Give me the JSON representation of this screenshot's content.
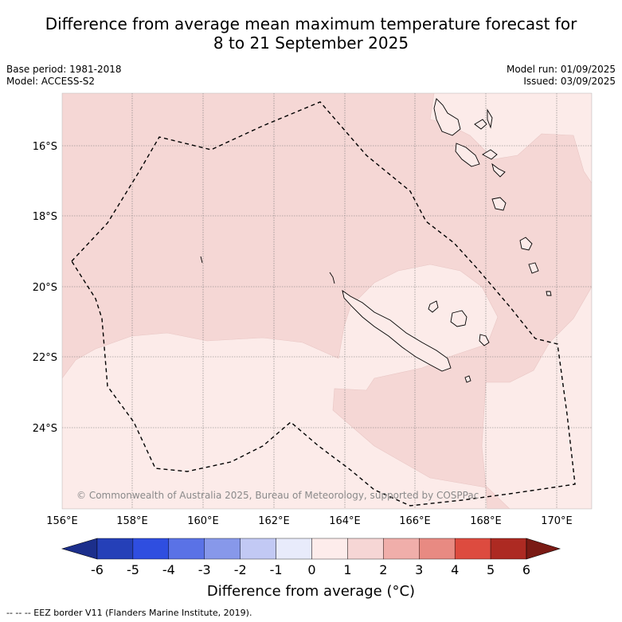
{
  "title_line1": "Difference from average mean maximum temperature forecast for",
  "title_line2": "8 to 21 September 2025",
  "base_period": "Base period: 1981-2018",
  "model": "Model: ACCESS-S2",
  "model_run": "Model run: 01/09/2025",
  "issued": "Issued: 03/09/2025",
  "copyright": "© Commonwealth of Australia 2025, Bureau of Meteorology, supported by COSPPac",
  "lat_labels": [
    "16°S",
    "18°S",
    "20°S",
    "22°S",
    "24°S"
  ],
  "lon_labels": [
    "156°E",
    "158°E",
    "160°E",
    "162°E",
    "164°E",
    "166°E",
    "168°E",
    "170°E"
  ],
  "colorbar": {
    "ticks": [
      "-6",
      "-5",
      "-4",
      "-3",
      "-2",
      "-1",
      "0",
      "1",
      "2",
      "3",
      "4",
      "5",
      "6"
    ],
    "colors": [
      "#1c2f8c",
      "#2540b8",
      "#2f4ee0",
      "#5a72e6",
      "#8798ea",
      "#c2c9f4",
      "#e8ebfb",
      "#fdeceb",
      "#f6d6d5",
      "#f0aeaa",
      "#e88a82",
      "#dd4b3f",
      "#ad2a22",
      "#7a1a14"
    ],
    "title": "Difference from average (°C)"
  },
  "eez_note": "-- -- -- EEZ border V11 (Flanders Marine Institute, 2019)."
}
